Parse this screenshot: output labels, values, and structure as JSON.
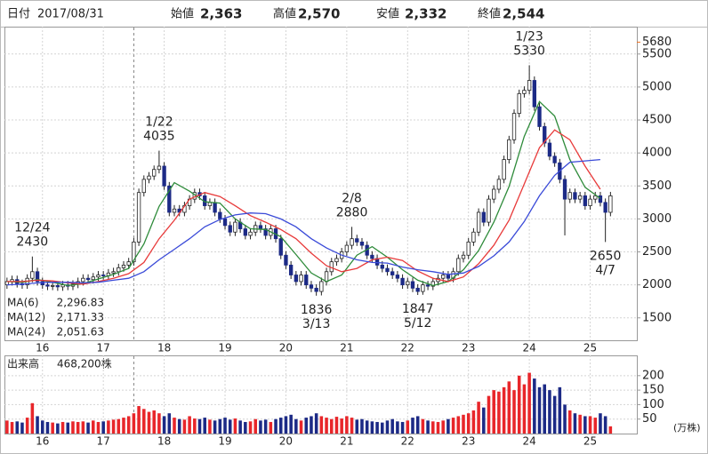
{
  "chart_data": {
    "type": "candlestick",
    "header": {
      "date_label": "日付",
      "date": "2017/08/31",
      "fields": [
        {
          "name": "始値",
          "value": 2363,
          "label": "2,363",
          "color": "#000000"
        },
        {
          "name": "高値",
          "value": 2570,
          "label": "2,570",
          "color": "#e02020"
        },
        {
          "name": "安値",
          "value": 2332,
          "label": "2,332",
          "color": "#1a8a2a"
        },
        {
          "name": "終値",
          "value": 2544,
          "label": "2,544",
          "color": "#000000"
        }
      ]
    },
    "ylim": [
      1160,
      5915
    ],
    "yticks": [
      1500,
      2000,
      2500,
      3000,
      3500,
      4000,
      4500,
      5000,
      5500
    ],
    "range_high": {
      "value": 5680,
      "color": "#f07020"
    },
    "xlim": [
      -0.5,
      124.2
    ],
    "xticks": [
      {
        "value": 7,
        "label": "16"
      },
      {
        "value": 19,
        "label": "17"
      },
      {
        "value": 31,
        "label": "18"
      },
      {
        "value": 43,
        "label": "19"
      },
      {
        "value": 55,
        "label": "20"
      },
      {
        "value": 67,
        "label": "21"
      },
      {
        "value": 79,
        "label": "22"
      },
      {
        "value": 91,
        "label": "23"
      },
      {
        "value": 103,
        "label": "24"
      },
      {
        "value": 115,
        "label": "25"
      }
    ],
    "grid": true,
    "up_color": "#ffffff",
    "down_color": "#1c2a86",
    "wick_color": "#222222",
    "ohlc": {
      "open": [
        2000,
        2050,
        2080,
        2020,
        2000,
        2100,
        2200,
        2050,
        2000,
        1980,
        1990,
        1970,
        2000,
        1980,
        2010,
        2050,
        2100,
        2080,
        2120,
        2150,
        2140,
        2180,
        2200,
        2260,
        2300,
        2350,
        2650,
        3400,
        3600,
        3650,
        3750,
        3800,
        3500,
        3100,
        3150,
        3100,
        3200,
        3300,
        3400,
        3350,
        3200,
        3250,
        3100,
        3000,
        2900,
        2800,
        2950,
        2850,
        2750,
        2800,
        2900,
        2850,
        2750,
        2850,
        2700,
        2450,
        2300,
        2150,
        2050,
        2150,
        2000,
        1950,
        1900,
        2050,
        2200,
        2350,
        2400,
        2500,
        2600,
        2700,
        2650,
        2600,
        2450,
        2400,
        2300,
        2250,
        2200,
        2150,
        2100,
        2000,
        2050,
        1950,
        1900,
        2000,
        1980,
        2050,
        2100,
        2150,
        2100,
        2200,
        2400,
        2450,
        2650,
        2800,
        3100,
        2950,
        3300,
        3450,
        3600,
        3900,
        4200,
        4600,
        4900,
        4950,
        5100,
        4700,
        4400,
        4150,
        3950,
        3850,
        3600,
        3300,
        3400,
        3300,
        3350,
        3200,
        3300,
        3350,
        3250,
        3100
      ],
      "high": [
        2110,
        2140,
        2140,
        2080,
        2160,
        2430,
        2260,
        2110,
        2060,
        2050,
        2050,
        2060,
        2060,
        2070,
        2110,
        2160,
        2160,
        2180,
        2210,
        2210,
        2240,
        2260,
        2320,
        2360,
        2410,
        2710,
        3460,
        3660,
        3710,
        3810,
        4035,
        3860,
        3560,
        3210,
        3210,
        3260,
        3360,
        3460,
        3460,
        3410,
        3310,
        3310,
        3160,
        3060,
        2960,
        3010,
        3010,
        2910,
        2860,
        2960,
        2960,
        2910,
        2910,
        2910,
        2760,
        2510,
        2360,
        2210,
        2210,
        2210,
        2060,
        2010,
        2110,
        2260,
        2410,
        2460,
        2560,
        2660,
        2880,
        2760,
        2710,
        2660,
        2510,
        2460,
        2360,
        2310,
        2260,
        2210,
        2160,
        2110,
        2110,
        2010,
        2060,
        2060,
        2110,
        2160,
        2210,
        2210,
        2260,
        2460,
        2510,
        2710,
        2860,
        3160,
        3160,
        3360,
        3510,
        3660,
        3960,
        4260,
        4660,
        4960,
        5010,
        5330,
        5160,
        4760,
        4460,
        4210,
        4010,
        3910,
        3660,
        3460,
        3460,
        3410,
        3410,
        3360,
        3410,
        3410,
        3310,
        3410
      ],
      "low": [
        1940,
        1990,
        1960,
        1940,
        1940,
        2040,
        1990,
        1940,
        1920,
        1920,
        1910,
        1910,
        1920,
        1920,
        1950,
        1990,
        2020,
        2020,
        2060,
        2080,
        2080,
        2120,
        2140,
        2200,
        2240,
        2290,
        2590,
        3340,
        3540,
        3590,
        3690,
        3440,
        3040,
        3040,
        3040,
        3040,
        3140,
        3240,
        3290,
        3140,
        3140,
        3040,
        2940,
        2840,
        2740,
        2740,
        2790,
        2690,
        2690,
        2740,
        2790,
        2690,
        2690,
        2640,
        2390,
        2240,
        2090,
        1990,
        1990,
        1940,
        1890,
        1836,
        1840,
        1990,
        2140,
        2290,
        2340,
        2440,
        2540,
        2590,
        2540,
        2390,
        2340,
        2240,
        2190,
        2140,
        2090,
        2040,
        1940,
        1940,
        1890,
        1847,
        1850,
        1920,
        1920,
        1990,
        2040,
        2040,
        2040,
        2140,
        2340,
        2390,
        2590,
        2740,
        2890,
        2890,
        3240,
        3390,
        3540,
        3840,
        4140,
        4540,
        4840,
        4890,
        4640,
        4340,
        4090,
        3890,
        3790,
        3540,
        2750,
        3240,
        3240,
        3240,
        3140,
        3140,
        3240,
        3190,
        2650,
        3040
      ],
      "close": [
        2050,
        2080,
        2020,
        2000,
        2100,
        2200,
        2050,
        2000,
        1980,
        1990,
        1970,
        2000,
        1980,
        2010,
        2050,
        2100,
        2080,
        2120,
        2150,
        2140,
        2180,
        2200,
        2260,
        2300,
        2350,
        2650,
        3400,
        3600,
        3650,
        3750,
        3800,
        3500,
        3100,
        3150,
        3100,
        3200,
        3300,
        3400,
        3350,
        3200,
        3250,
        3100,
        3000,
        2900,
        2800,
        2950,
        2850,
        2750,
        2800,
        2900,
        2850,
        2750,
        2850,
        2700,
        2450,
        2300,
        2150,
        2050,
        2150,
        2000,
        1950,
        1900,
        2050,
        2200,
        2350,
        2400,
        2500,
        2600,
        2700,
        2650,
        2600,
        2450,
        2400,
        2300,
        2250,
        2200,
        2150,
        2100,
        2000,
        2050,
        1950,
        1900,
        2000,
        1980,
        2050,
        2100,
        2150,
        2100,
        2200,
        2400,
        2450,
        2650,
        2800,
        3100,
        2950,
        3300,
        3450,
        3600,
        3900,
        4200,
        4600,
        4900,
        4950,
        5100,
        4700,
        4400,
        4150,
        3950,
        3850,
        3600,
        3300,
        3400,
        3300,
        3350,
        3200,
        3300,
        3350,
        3250,
        3100,
        3350
      ]
    },
    "ma": {
      "x": [
        0,
        3,
        6,
        9,
        12,
        15,
        18,
        21,
        24,
        27,
        30,
        33,
        36,
        39,
        42,
        45,
        48,
        51,
        54,
        57,
        60,
        63,
        66,
        69,
        72,
        75,
        78,
        81,
        84,
        87,
        90,
        93,
        96,
        99,
        102,
        105,
        108,
        111,
        114,
        117
      ],
      "series": [
        {
          "name": "MA(6)",
          "color": "#2e8b3a",
          "legend_value": {
            "value": 2296.83,
            "label": "2,296.83"
          },
          "values": [
            2050,
            2040,
            2080,
            2040,
            1990,
            2020,
            2090,
            2160,
            2250,
            2620,
            3190,
            3550,
            3420,
            3260,
            3240,
            3000,
            2850,
            2840,
            2730,
            2460,
            2180,
            2050,
            2150,
            2450,
            2580,
            2420,
            2230,
            2070,
            1990,
            2050,
            2230,
            2520,
            2950,
            3490,
            4250,
            4780,
            4560,
            3900,
            3480,
            3310
          ]
        },
        {
          "name": "MA(12)",
          "color": "#e83a3a",
          "legend_value": {
            "value": 2171.33,
            "label": "2,171.33"
          },
          "values": [
            2050,
            2050,
            2070,
            2060,
            2030,
            2010,
            2050,
            2100,
            2170,
            2340,
            2700,
            2980,
            3300,
            3400,
            3340,
            3200,
            3050,
            2950,
            2840,
            2700,
            2480,
            2290,
            2200,
            2250,
            2380,
            2420,
            2370,
            2210,
            2100,
            2050,
            2120,
            2320,
            2600,
            2980,
            3530,
            4080,
            4350,
            4200,
            3800,
            3450
          ]
        },
        {
          "name": "MA(24)",
          "color": "#3a4ad8",
          "legend_value": {
            "value": 2051.63,
            "label": "2,051.63"
          },
          "values": [
            2000,
            2010,
            2030,
            2040,
            2040,
            2030,
            2040,
            2070,
            2100,
            2200,
            2380,
            2540,
            2700,
            2880,
            2990,
            3060,
            3090,
            3080,
            3000,
            2880,
            2700,
            2560,
            2450,
            2380,
            2340,
            2330,
            2270,
            2230,
            2200,
            2160,
            2180,
            2280,
            2440,
            2650,
            2960,
            3350,
            3660,
            3860,
            3880,
            3900
          ]
        }
      ]
    },
    "annotations": [
      {
        "date": "12/24",
        "value": 2430,
        "x": 5,
        "side": "above"
      },
      {
        "date": "1/22",
        "value": 4035,
        "x": 30,
        "side": "above"
      },
      {
        "date": "3/13",
        "value": 1836,
        "x": 61,
        "side": "below"
      },
      {
        "date": "2/8",
        "value": 2880,
        "x": 68,
        "side": "above"
      },
      {
        "date": "5/12",
        "value": 1847,
        "x": 81,
        "side": "below"
      },
      {
        "date": "1/23",
        "value": 5330,
        "x": 103,
        "side": "above"
      },
      {
        "date": "4/7",
        "value": 2650,
        "x": 118,
        "side": "below"
      }
    ],
    "volume": {
      "label": "出来高",
      "hover": {
        "value": 468200,
        "label": "468,200株"
      },
      "unit": "(万株)",
      "ylim": [
        0,
        270
      ],
      "yticks": [
        50,
        100,
        150,
        200
      ],
      "up_color": "#e8262a",
      "down_color": "#1c2a86",
      "values": [
        45,
        40,
        42,
        38,
        55,
        105,
        60,
        45,
        40,
        38,
        35,
        40,
        38,
        42,
        40,
        42,
        38,
        45,
        40,
        42,
        45,
        48,
        50,
        55,
        60,
        70,
        95,
        85,
        75,
        80,
        70,
        60,
        70,
        55,
        50,
        48,
        60,
        52,
        50,
        55,
        48,
        45,
        50,
        55,
        48,
        52,
        45,
        40,
        42,
        50,
        45,
        48,
        40,
        50,
        55,
        60,
        65,
        50,
        45,
        55,
        60,
        70,
        60,
        55,
        50,
        58,
        52,
        60,
        55,
        48,
        50,
        45,
        42,
        40,
        38,
        45,
        50,
        42,
        40,
        45,
        55,
        60,
        50,
        45,
        42,
        40,
        45,
        50,
        55,
        60,
        65,
        70,
        80,
        110,
        90,
        130,
        150,
        145,
        160,
        180,
        150,
        200,
        170,
        210,
        190,
        160,
        170,
        150,
        130,
        160,
        100,
        80,
        70,
        65,
        60,
        60,
        55,
        70,
        60,
        25
      ]
    }
  }
}
